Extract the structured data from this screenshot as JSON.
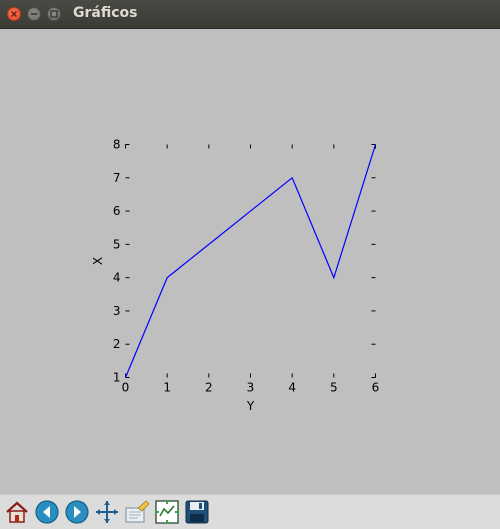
{
  "window": {
    "title": "Gráficos"
  },
  "toolbar": {
    "buttons": [
      {
        "name": "home-button",
        "icon": "home-icon"
      },
      {
        "name": "back-button",
        "icon": "arrow-left-icon"
      },
      {
        "name": "forward-button",
        "icon": "arrow-right-icon"
      },
      {
        "name": "pan-button",
        "icon": "move-icon"
      },
      {
        "name": "zoom-button",
        "icon": "zoom-rect-icon"
      },
      {
        "name": "subplots-button",
        "icon": "subplots-icon"
      },
      {
        "name": "save-button",
        "icon": "save-icon"
      }
    ]
  },
  "chart_data": {
    "type": "line",
    "x": [
      0,
      1,
      2,
      3,
      4,
      5,
      6
    ],
    "series": [
      {
        "values": [
          1,
          4,
          5,
          6,
          7,
          4,
          8
        ],
        "color": "#0000ff"
      }
    ],
    "xlabel": "Y",
    "ylabel": "X",
    "xlim": [
      0,
      6
    ],
    "ylim": [
      1,
      8
    ],
    "xticks": [
      "0",
      "1",
      "2",
      "3",
      "4",
      "5",
      "6"
    ],
    "yticks": [
      "1",
      "2",
      "3",
      "4",
      "5",
      "6",
      "7",
      "8"
    ],
    "grid": false
  }
}
